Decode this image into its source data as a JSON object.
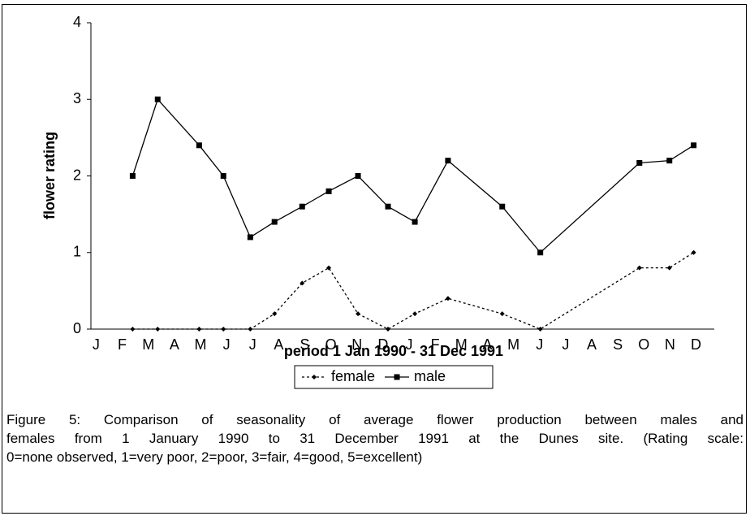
{
  "chart_data": {
    "type": "line",
    "x": [
      1.4,
      2.36,
      3.95,
      4.88,
      5.91,
      6.84,
      7.9,
      8.92,
      10.04,
      11.19,
      12.22,
      13.49,
      15.57,
      17.03,
      20.83,
      21.98,
      22.91
    ],
    "series": [
      {
        "name": "female",
        "color": "#000000",
        "dash": true,
        "marker": "diamond",
        "values": [
          0,
          0,
          0,
          0,
          0,
          0.2,
          0.6,
          0.8,
          0.2,
          0,
          0.2,
          0.4,
          0.2,
          0,
          0.8,
          0.8,
          1
        ]
      },
      {
        "name": "male",
        "color": "#000000",
        "dash": false,
        "marker": "square",
        "values": [
          2,
          3,
          2.4,
          2,
          1.2,
          1.4,
          1.6,
          1.8,
          2,
          1.6,
          1.4,
          2.2,
          1.6,
          1,
          2.17,
          2.2,
          2.4
        ]
      }
    ],
    "xlim": [
      -0.2,
      23.7
    ],
    "xticks": [
      {
        "value": 0,
        "label": "J"
      },
      {
        "value": 1,
        "label": "F"
      },
      {
        "value": 2,
        "label": "M"
      },
      {
        "value": 3,
        "label": "A"
      },
      {
        "value": 4,
        "label": "M"
      },
      {
        "value": 5,
        "label": "J"
      },
      {
        "value": 6,
        "label": "J"
      },
      {
        "value": 7,
        "label": "A"
      },
      {
        "value": 8,
        "label": "S"
      },
      {
        "value": 9,
        "label": "O"
      },
      {
        "value": 10,
        "label": "N"
      },
      {
        "value": 11,
        "label": "D"
      },
      {
        "value": 12,
        "label": "J"
      },
      {
        "value": 13,
        "label": "F"
      },
      {
        "value": 14,
        "label": "M"
      },
      {
        "value": 15,
        "label": "A"
      },
      {
        "value": 16,
        "label": "M"
      },
      {
        "value": 17,
        "label": "J"
      },
      {
        "value": 18,
        "label": "J"
      },
      {
        "value": 19,
        "label": "A"
      },
      {
        "value": 20,
        "label": "S"
      },
      {
        "value": 21,
        "label": "O"
      },
      {
        "value": 22,
        "label": "N"
      },
      {
        "value": 23,
        "label": "D"
      }
    ],
    "ylim": [
      0,
      4
    ],
    "yticks": [
      0,
      1,
      2,
      3,
      4
    ],
    "x_label": "period 1 Jan 1990 - 31 Dec 1991",
    "y_label": "flower rating",
    "legend": "bottom",
    "caption": [
      "Figure 5: Comparison of seasonality of average flower production between males and",
      "females from 1 January 1990 to 31 December 1991 at the Dunes site. (Rating scale:",
      "0=none observed, 1=very poor, 2=poor, 3=fair, 4=good, 5=excellent)"
    ]
  }
}
